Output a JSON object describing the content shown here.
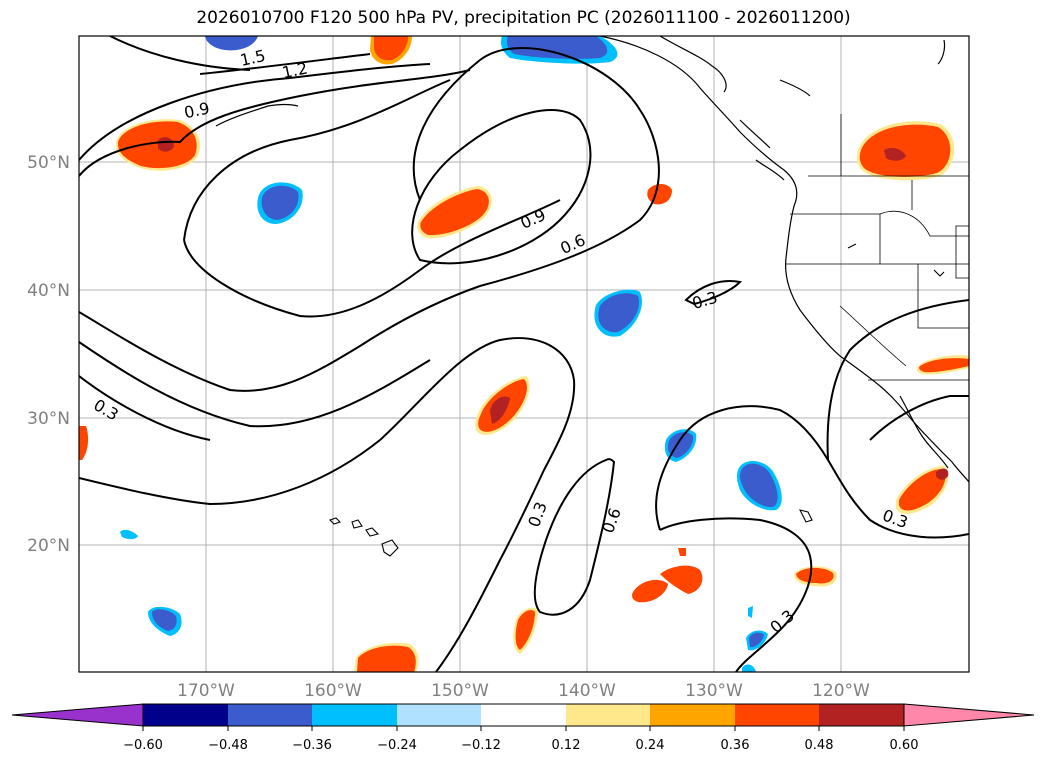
{
  "title": "2026010700 F120 500 hPa PV, precipitation PC (2026011100 - 2026011200)",
  "map": {
    "lat_ticks": [
      "50°N",
      "40°N",
      "30°N",
      "20°N"
    ],
    "lon_ticks": [
      "170°W",
      "160°W",
      "150°W",
      "140°W",
      "130°W",
      "120°W"
    ],
    "contour_labels": [
      "1.5",
      "1.2",
      "0.9",
      "0.9",
      "0.6",
      "0.3",
      "0.3",
      "0.3",
      "0.6",
      "0.3",
      "0.3"
    ]
  },
  "colorbar": {
    "ticks": [
      "−0.60",
      "−0.48",
      "−0.36",
      "−0.24",
      "−0.12",
      "0.12",
      "0.24",
      "0.36",
      "0.48",
      "0.60"
    ],
    "colors": [
      "#9932cc",
      "#00008b",
      "#3a5ccc",
      "#00bfff",
      "#b0e2ff",
      "#ffffff",
      "#ffe88c",
      "#ffa500",
      "#ff4500",
      "#b22222",
      "#ff88aa"
    ]
  },
  "colors": {
    "neg_core": "#3a5ccc",
    "neg_edge": "#00bfff",
    "pos_core": "#ff4500",
    "pos_edge": "#ffa500",
    "pos_max": "#b22222"
  }
}
